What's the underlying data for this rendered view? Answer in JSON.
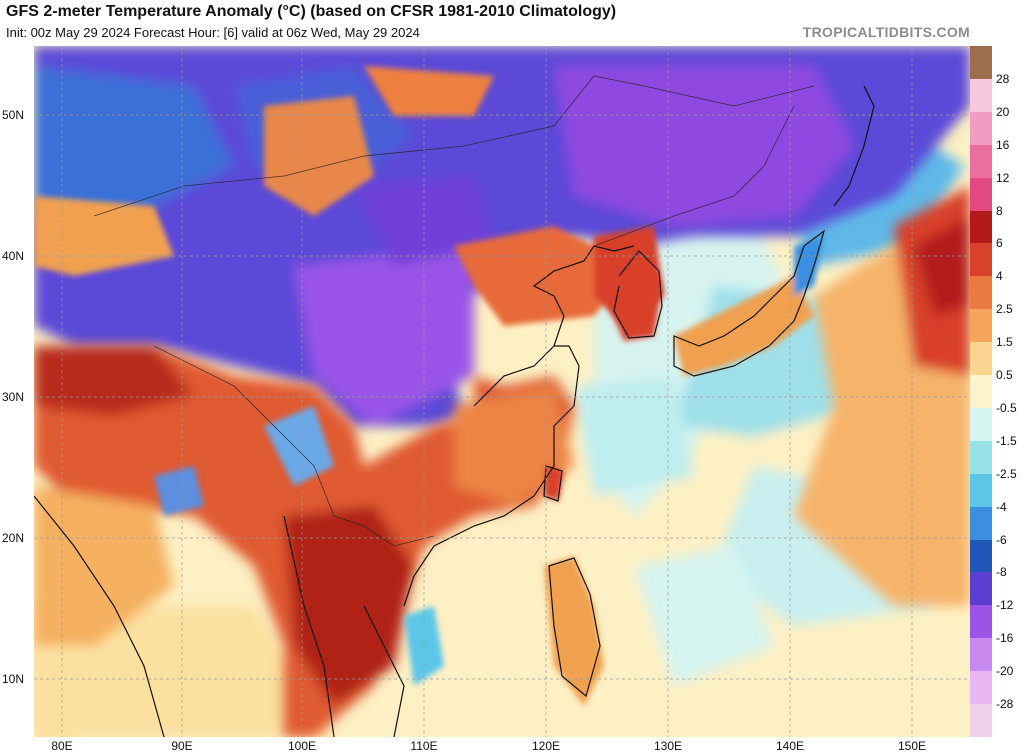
{
  "header": {
    "title": "GFS 2-meter Temperature Anomaly (°C) (based on CFSR 1981-2010 Climatology)",
    "subtitle": "Init: 00z May 29 2024   Forecast Hour: [6]   valid at 06z Wed, May 29 2024",
    "brand": "TROPICALTIDBITS.COM"
  },
  "map": {
    "lat_labels": [
      "50N",
      "40N",
      "30N",
      "20N",
      "10N"
    ],
    "lon_labels": [
      "80E",
      "90E",
      "100E",
      "110E",
      "120E",
      "130E",
      "140E",
      "150E"
    ],
    "ocean_color": "#fdf0c4",
    "colors": {
      "cold_deep": "#8f48e0",
      "cold_mid": "#3a6fd8",
      "cool": "#7ad6e6",
      "warm": "#f0a050",
      "hot": "#d83c25",
      "very_hot": "#b02018"
    }
  },
  "colorbar": {
    "labels": [
      "28",
      "20",
      "16",
      "12",
      "8",
      "6",
      "4",
      "2.5",
      "1.5",
      "0.5",
      "-0.5",
      "-1.5",
      "-2.5",
      "-4",
      "-6",
      "-8",
      "-12",
      "-16",
      "-20",
      "-28"
    ],
    "colors": [
      "#9e6d4e",
      "#f7c7de",
      "#f29cc3",
      "#ea6f9f",
      "#e14a7f",
      "#b31b1b",
      "#d8412b",
      "#ea7a3f",
      "#f5a45a",
      "#fbd590",
      "#fdf3cc",
      "#d6f4f0",
      "#96e2e8",
      "#5bc6e8",
      "#3a8fe0",
      "#1f56b8",
      "#5a3fd0",
      "#9a55e8",
      "#c78af0",
      "#e8b8f4",
      "#f0d0e8"
    ]
  }
}
